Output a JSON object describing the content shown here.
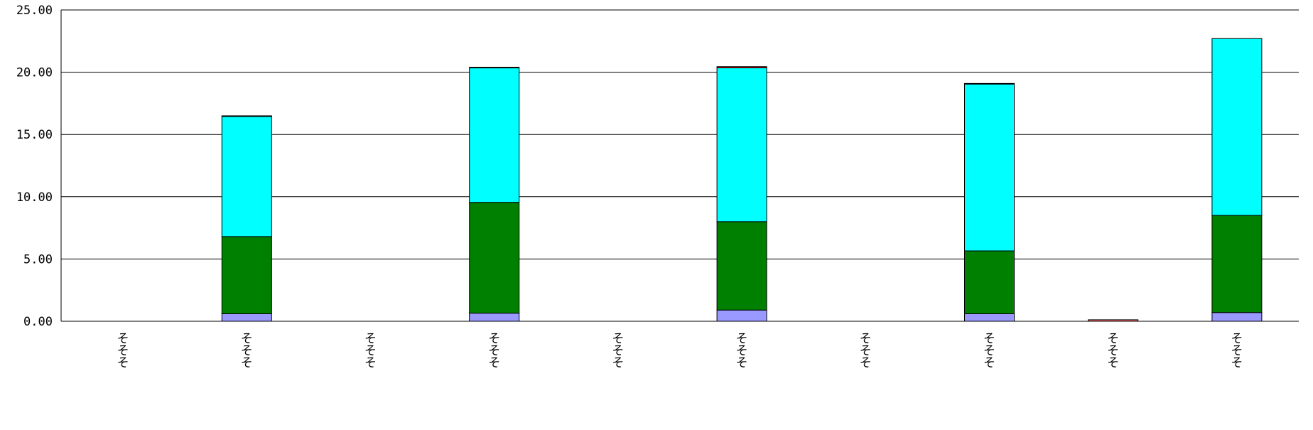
{
  "chart_data": {
    "type": "bar",
    "stacked": true,
    "categories": [
      "そそそ",
      "そそそ",
      "そそそ",
      "そそそ",
      "そそそ",
      "そそそ",
      "そそそ",
      "そそそ",
      "そそそ",
      "そそそ"
    ],
    "series": [
      {
        "color": "#9999ff",
        "values": [
          0,
          0.6,
          0,
          0.65,
          0,
          0.9,
          0,
          0.6,
          0,
          0.7
        ]
      },
      {
        "color": "#008000",
        "values": [
          0,
          6.2,
          0,
          8.9,
          0,
          7.1,
          0,
          5.05,
          0,
          7.8
        ]
      },
      {
        "color": "#00ffff",
        "values": [
          0,
          9.65,
          0,
          10.8,
          0,
          12.35,
          0,
          13.4,
          0,
          14.2
        ]
      },
      {
        "color": "#ff0000",
        "values": [
          0,
          0.05,
          0,
          0.05,
          0,
          0.1,
          0,
          0.05,
          0,
          0
        ]
      },
      {
        "color": "#ff6666",
        "values": [
          0,
          0,
          0,
          0,
          0,
          0,
          0,
          0,
          0.12,
          0
        ]
      }
    ],
    "ylim": [
      0,
      25
    ],
    "yticks": [
      "0.00",
      "5.00",
      "10.00",
      "15.00",
      "20.00",
      "25.00"
    ],
    "grid": true
  }
}
